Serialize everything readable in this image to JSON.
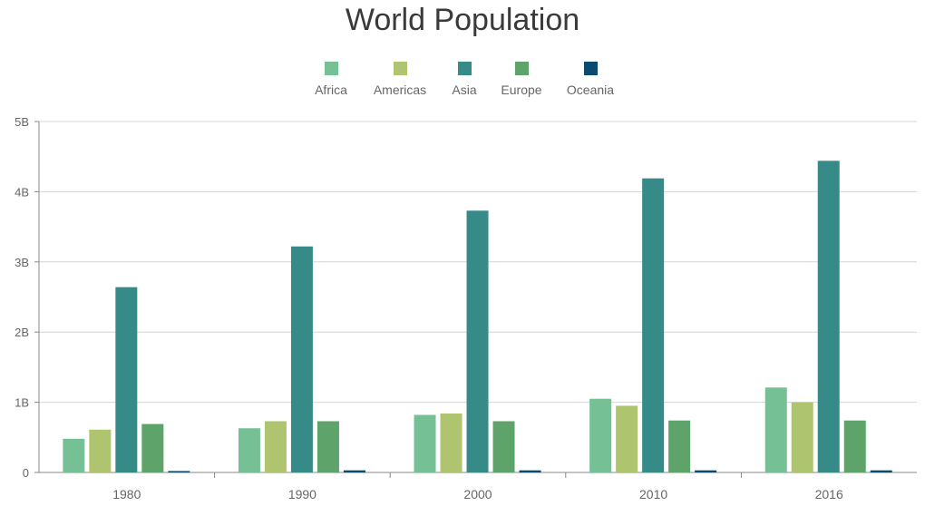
{
  "chart_data": {
    "type": "bar",
    "title": "World Population",
    "categories": [
      "1980",
      "1990",
      "2000",
      "2010",
      "2016"
    ],
    "series": [
      {
        "name": "Africa",
        "color": "#76c096",
        "values": [
          0.48,
          0.63,
          0.82,
          1.05,
          1.21
        ]
      },
      {
        "name": "Americas",
        "color": "#aec46f",
        "values": [
          0.61,
          0.73,
          0.84,
          0.95,
          1.0
        ]
      },
      {
        "name": "Asia",
        "color": "#368b88",
        "values": [
          2.64,
          3.22,
          3.73,
          4.19,
          4.44
        ]
      },
      {
        "name": "Europe",
        "color": "#5da36a",
        "values": [
          0.69,
          0.73,
          0.73,
          0.74,
          0.74
        ]
      },
      {
        "name": "Oceania",
        "color": "#0b4a6f",
        "values": [
          0.02,
          0.03,
          0.03,
          0.03,
          0.03
        ]
      }
    ],
    "ylim": [
      0,
      5
    ],
    "y_ticks": [
      {
        "value": 0,
        "label": "0"
      },
      {
        "value": 1,
        "label": "1B"
      },
      {
        "value": 2,
        "label": "2B"
      },
      {
        "value": 3,
        "label": "3B"
      },
      {
        "value": 4,
        "label": "4B"
      },
      {
        "value": 5,
        "label": "5B"
      }
    ],
    "grid": true,
    "legend_position": "top-center"
  }
}
